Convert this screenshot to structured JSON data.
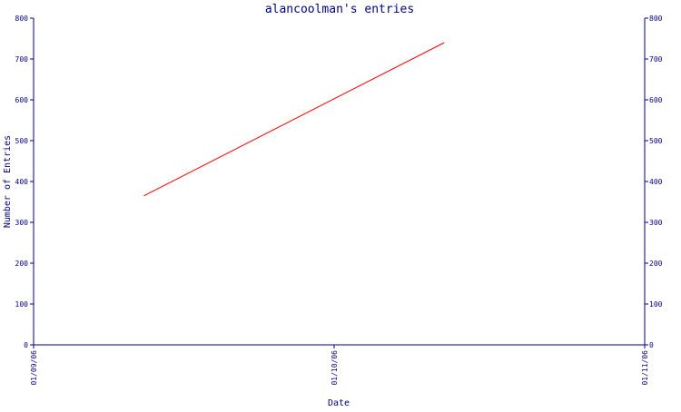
{
  "chart_data": {
    "type": "line",
    "title": "alancoolman's entries",
    "xlabel": "Date",
    "ylabel": "Number of Entries",
    "ylim": [
      0,
      800
    ],
    "yticks": [
      0,
      100,
      200,
      300,
      400,
      500,
      600,
      700,
      800
    ],
    "xlim": [
      "2006-09-01",
      "2006-11-01"
    ],
    "xticks": [
      {
        "date": "2006-09-01",
        "label": "01/09/06"
      },
      {
        "date": "2006-10-01",
        "label": "01/10/06"
      },
      {
        "date": "2006-11-01",
        "label": "01/11/06"
      }
    ],
    "grid": false,
    "right_axis": true,
    "series": [
      {
        "x": [
          "2006-09-12",
          "2006-10-12"
        ],
        "y": [
          365,
          740
        ],
        "color": "#ff0000"
      }
    ],
    "colors": {
      "axis": "#000080",
      "line": "#ff0000",
      "text": "#000080"
    }
  }
}
